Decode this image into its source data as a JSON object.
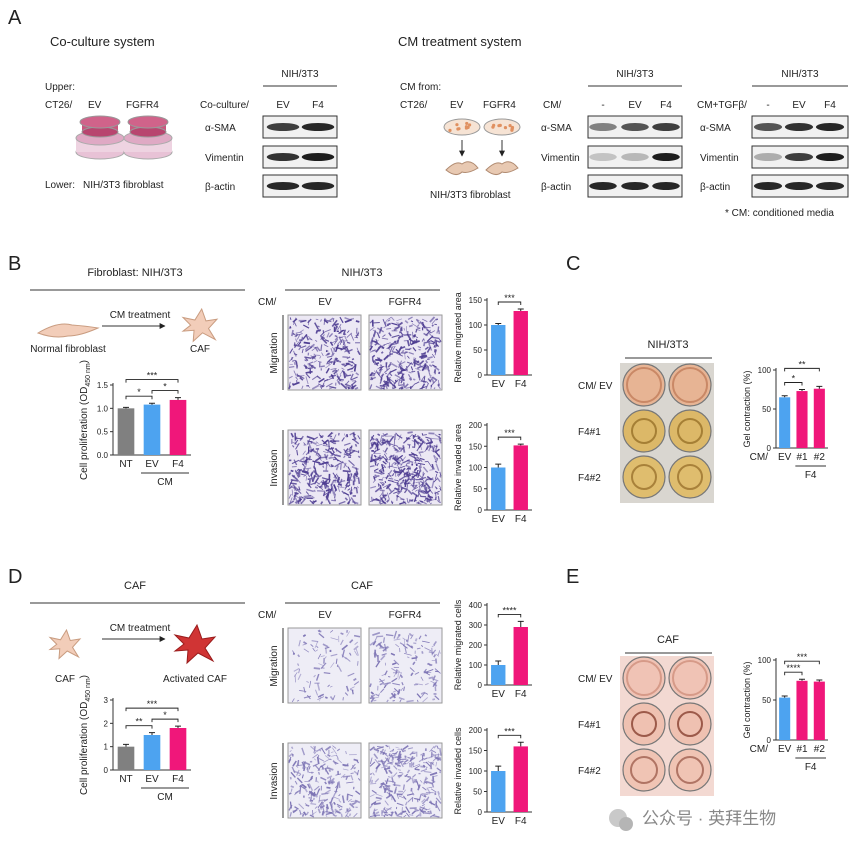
{
  "panel_a": {
    "label": "A",
    "coculture_title": "Co-culture system",
    "cm_title": "CM treatment system",
    "upper": "Upper:",
    "ct26": "CT26/",
    "ev": "EV",
    "fgfr4": "FGFR4",
    "lower": "Lower:",
    "fibroblast": "NIH/3T3 fibroblast",
    "cm_from": "CM from:",
    "cm_ct26": "CT26/",
    "cm_ev": "EV",
    "cm_fgfr4": "FGFR4",
    "cm_fibroblast": "NIH/3T3 fibroblast",
    "blots": [
      {
        "cell": "NIH/3T3",
        "condition": "Co-culture/",
        "lanes": [
          "EV",
          "F4"
        ],
        "rows": [
          "α-SMA",
          "Vimentin",
          "β-actin"
        ]
      },
      {
        "cell": "NIH/3T3",
        "condition": "CM/",
        "lanes": [
          "-",
          "EV",
          "F4"
        ],
        "rows": [
          "α-SMA",
          "Vimentin",
          "β-actin"
        ]
      },
      {
        "cell": "NIH/3T3",
        "condition": "CM+TGFβ/",
        "lanes": [
          "-",
          "EV",
          "F4"
        ],
        "rows": [
          "α-SMA",
          "Vimentin",
          "β-actin"
        ]
      }
    ],
    "footnote": "* CM: conditioned media"
  },
  "panel_b": {
    "label": "B",
    "title": "Fibroblast: NIH/3T3",
    "arrow": "CM treatment",
    "from": "Normal fibroblast",
    "to": "CAF",
    "micro_title": "NIH/3T3",
    "cm": "CM/",
    "columns": [
      "EV",
      "FGFR4"
    ],
    "rows": [
      "Migration",
      "Invasion"
    ]
  },
  "panel_c": {
    "label": "C",
    "title": "NIH/3T3",
    "rows": [
      "CM/  EV",
      "F4#1",
      "F4#2"
    ]
  },
  "panel_d": {
    "label": "D",
    "title": "CAF",
    "arrow": "CM treatment",
    "from": "CAF",
    "to": "Activated CAF",
    "micro_title": "CAF",
    "cm": "CM/",
    "columns": [
      "EV",
      "FGFR4"
    ],
    "rows": [
      "Migration",
      "Invasion"
    ]
  },
  "panel_e": {
    "label": "E",
    "title": "CAF",
    "rows": [
      "CM/  EV",
      "F4#1",
      "F4#2"
    ]
  },
  "watermark": "公众号 · 英拜生物",
  "chart_data": [
    {
      "type": "bar",
      "ylabel_parts": [
        "Cell proliferation (OD",
        "450 nm",
        ")"
      ],
      "categories": [
        "NT",
        "EV",
        "F4"
      ],
      "values": [
        1.0,
        1.08,
        1.18
      ],
      "errors": [
        0.02,
        0.03,
        0.05
      ],
      "colors": [
        "#808080",
        "#4da3f0",
        "#f0177a"
      ],
      "ylim": [
        0,
        1.5
      ],
      "yticks": [
        {
          "value": 0,
          "label": "0.0"
        },
        {
          "value": 0.5,
          "label": "0.5"
        },
        {
          "value": 1,
          "label": "1.0"
        },
        {
          "value": 1.5,
          "label": "1.5"
        }
      ],
      "comparisons": [
        {
          "groups": [
            "NT",
            "EV"
          ],
          "label": "*"
        },
        {
          "groups": [
            "EV",
            "F4"
          ],
          "label": "*"
        },
        {
          "groups": [
            "NT",
            "F4"
          ],
          "label": "***"
        }
      ],
      "group": {
        "label": "CM",
        "categories": [
          "EV",
          "F4"
        ]
      }
    },
    {
      "type": "bar",
      "ylabel": "Relative migrated area",
      "categories": [
        "EV",
        "F4"
      ],
      "values": [
        100,
        128
      ],
      "errors": [
        3,
        4
      ],
      "colors": [
        "#4da3f0",
        "#f0177a"
      ],
      "ylim": [
        0,
        150
      ],
      "yticks": [
        0,
        50,
        100,
        150
      ],
      "comparisons": [
        {
          "groups": [
            "EV",
            "F4"
          ],
          "label": "***"
        }
      ]
    },
    {
      "type": "bar",
      "ylabel": "Relative invaded area",
      "categories": [
        "EV",
        "F4"
      ],
      "values": [
        100,
        152
      ],
      "errors": [
        8,
        3
      ],
      "colors": [
        "#4da3f0",
        "#f0177a"
      ],
      "ylim": [
        0,
        200
      ],
      "yticks": [
        0,
        50,
        100,
        150,
        200
      ],
      "comparisons": [
        {
          "groups": [
            "EV",
            "F4"
          ],
          "label": "***"
        }
      ]
    },
    {
      "type": "bar",
      "ylabel": "Gel contraction (%)",
      "categories": [
        "EV",
        "#1",
        "#2"
      ],
      "values": [
        65,
        73,
        76
      ],
      "errors": [
        2,
        2,
        3
      ],
      "colors": [
        "#4da3f0",
        "#f0177a",
        "#f0177a"
      ],
      "ylim": [
        0,
        100
      ],
      "yticks": [
        0,
        50,
        100
      ],
      "comparisons": [
        {
          "groups": [
            "EV",
            "#1"
          ],
          "label": "*"
        },
        {
          "groups": [
            "EV",
            "#2"
          ],
          "label": "**"
        }
      ],
      "x_prefix": "CM/",
      "group": {
        "label": "F4",
        "categories": [
          "#1",
          "#2"
        ]
      }
    },
    {
      "type": "bar",
      "ylabel_parts": [
        "Cell proliferation (OD",
        "450 nm",
        ")"
      ],
      "categories": [
        "NT",
        "EV",
        "F4"
      ],
      "values": [
        1.0,
        1.5,
        1.8
      ],
      "errors": [
        0.1,
        0.1,
        0.08
      ],
      "colors": [
        "#808080",
        "#4da3f0",
        "#f0177a"
      ],
      "ylim": [
        0,
        3
      ],
      "yticks": [
        0,
        1,
        2,
        3
      ],
      "comparisons": [
        {
          "groups": [
            "NT",
            "EV"
          ],
          "label": "**"
        },
        {
          "groups": [
            "EV",
            "F4"
          ],
          "label": "*"
        },
        {
          "groups": [
            "NT",
            "F4"
          ],
          "label": "***"
        }
      ],
      "group": {
        "label": "CM",
        "categories": [
          "EV",
          "F4"
        ]
      }
    },
    {
      "type": "bar",
      "ylabel": "Relative migrated cells",
      "categories": [
        "EV",
        "F4"
      ],
      "values": [
        100,
        290
      ],
      "errors": [
        20,
        28
      ],
      "colors": [
        "#4da3f0",
        "#f0177a"
      ],
      "ylim": [
        0,
        400
      ],
      "yticks": [
        0,
        100,
        200,
        300,
        400
      ],
      "comparisons": [
        {
          "groups": [
            "EV",
            "F4"
          ],
          "label": "****"
        }
      ]
    },
    {
      "type": "bar",
      "ylabel": "Relative invaded cells",
      "categories": [
        "EV",
        "F4"
      ],
      "values": [
        100,
        160
      ],
      "errors": [
        12,
        10
      ],
      "colors": [
        "#4da3f0",
        "#f0177a"
      ],
      "ylim": [
        0,
        200
      ],
      "yticks": [
        0,
        50,
        100,
        150,
        200
      ],
      "comparisons": [
        {
          "groups": [
            "EV",
            "F4"
          ],
          "label": "***"
        }
      ]
    },
    {
      "type": "bar",
      "ylabel": "Gel contraction (%)",
      "categories": [
        "EV",
        "#1",
        "#2"
      ],
      "values": [
        53,
        74,
        73
      ],
      "errors": [
        2,
        2,
        2
      ],
      "colors": [
        "#4da3f0",
        "#f0177a",
        "#f0177a"
      ],
      "ylim": [
        0,
        100
      ],
      "yticks": [
        0,
        50,
        100
      ],
      "comparisons": [
        {
          "groups": [
            "EV",
            "#1"
          ],
          "label": "****"
        },
        {
          "groups": [
            "EV",
            "#2"
          ],
          "label": "***"
        }
      ],
      "x_prefix": "CM/",
      "group": {
        "label": "F4",
        "categories": [
          "#1",
          "#2"
        ]
      }
    }
  ]
}
